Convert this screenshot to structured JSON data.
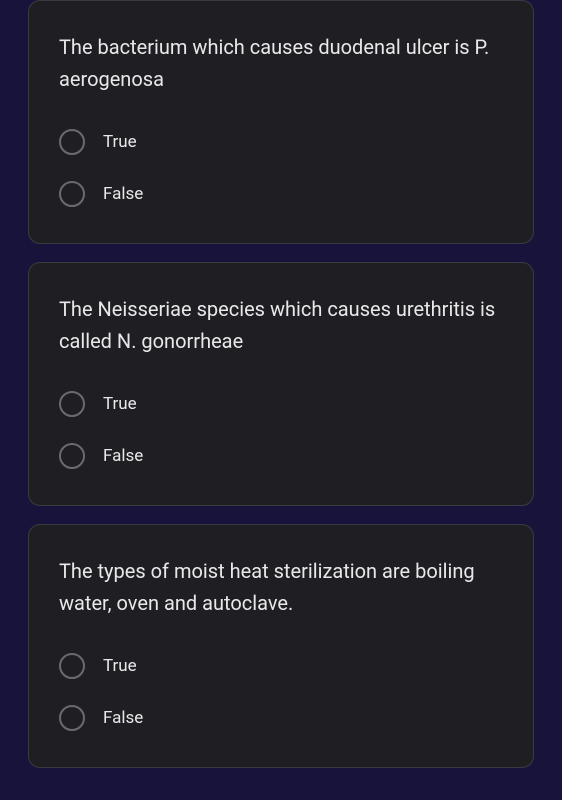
{
  "colors": {
    "page_background": "#17133a",
    "card_background": "#1f1f23",
    "card_border": "#3a3a42",
    "text_primary": "#e8e8ea",
    "radio_border": "#6a6a72"
  },
  "questions": [
    {
      "text": "The bacterium which causes duodenal ulcer is P. aerogenosa",
      "options": [
        "True",
        "False"
      ]
    },
    {
      "text": "The Neisseriae species which causes urethritis is called N. gonorrheae",
      "options": [
        "True",
        "False"
      ]
    },
    {
      "text": "The types of moist heat sterilization are boiling water, oven and autoclave.",
      "options": [
        "True",
        "False"
      ]
    }
  ]
}
